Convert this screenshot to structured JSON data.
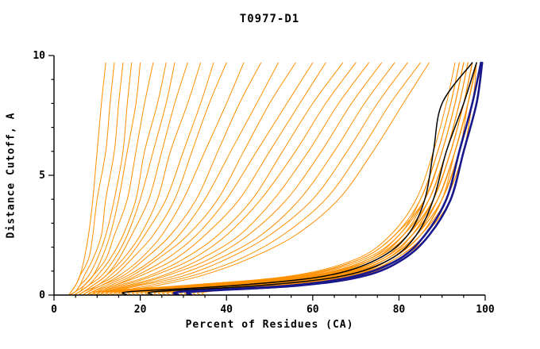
{
  "title": "T0977-D1",
  "axes": {
    "x": {
      "label": "Percent of Residues (CA)",
      "min": 0,
      "max": 100,
      "major_ticks": [
        0,
        20,
        40,
        60,
        80,
        100
      ],
      "minor_step": 5
    },
    "y": {
      "label": "Distance Cutoff, A",
      "min": 0,
      "max": 10,
      "major_ticks": [
        0,
        5,
        10
      ],
      "minor_step": 1
    }
  },
  "colors": {
    "orange_models": "#FF9000",
    "black_models": "#000000",
    "navy_models": "#18188C",
    "axis": "#000000",
    "background": "#FFFFFF"
  },
  "chart_data": {
    "type": "line",
    "title": "T0977-D1",
    "xlabel": "Percent of Residues (CA)",
    "ylabel": "Distance Cutoff, A",
    "xlim": [
      0,
      100
    ],
    "ylim": [
      0,
      10
    ],
    "grid": false,
    "legend": "none",
    "description": "Cumulative accuracy curves for CASP target T0977-D1: each curve is one predicted model; x = percent of CA residues within distance cutoff y (Angstroms). Orange = model pool, black = highlighted models, navy thick = best models.",
    "y_levels": [
      0.15,
      0.4,
      0.8,
      1.5,
      2.5,
      4,
      6,
      8,
      9.7
    ],
    "series_groups": [
      {
        "name": "predicted-models",
        "color_key": "orange_models",
        "stroke_width": 1,
        "curves_x_at_y_levels": [
          [
            4,
            5,
            6,
            7,
            8,
            9,
            10,
            11,
            12
          ],
          [
            4,
            5,
            6,
            8,
            9,
            10,
            12,
            13,
            14
          ],
          [
            5,
            6,
            7,
            9,
            11,
            12,
            14,
            15,
            16
          ],
          [
            5,
            6,
            8,
            10,
            12,
            14,
            16,
            17,
            18
          ],
          [
            5,
            7,
            9,
            11,
            13,
            15,
            17,
            19,
            20
          ],
          [
            6,
            7,
            9,
            12,
            14,
            17,
            19,
            21,
            23
          ],
          [
            6,
            8,
            10,
            13,
            16,
            19,
            21,
            24,
            26
          ],
          [
            6,
            8,
            11,
            14,
            17,
            20,
            23,
            26,
            28
          ],
          [
            7,
            9,
            12,
            15,
            18,
            22,
            25,
            28,
            31
          ],
          [
            7,
            9,
            12,
            16,
            20,
            24,
            27,
            31,
            34
          ],
          [
            7,
            10,
            13,
            17,
            21,
            26,
            30,
            34,
            37
          ],
          [
            8,
            10,
            14,
            18,
            23,
            28,
            32,
            36,
            40
          ],
          [
            8,
            11,
            15,
            20,
            25,
            30,
            35,
            40,
            44
          ],
          [
            8,
            11,
            16,
            21,
            27,
            33,
            38,
            43,
            48
          ],
          [
            9,
            12,
            17,
            23,
            29,
            35,
            41,
            47,
            52
          ],
          [
            9,
            13,
            18,
            24,
            31,
            38,
            44,
            50,
            56
          ],
          [
            10,
            14,
            19,
            26,
            33,
            40,
            47,
            54,
            60
          ],
          [
            10,
            14,
            20,
            28,
            35,
            43,
            50,
            57,
            63
          ],
          [
            11,
            15,
            22,
            30,
            38,
            46,
            53,
            60,
            67
          ],
          [
            11,
            16,
            23,
            32,
            40,
            48,
            56,
            63,
            70
          ],
          [
            12,
            17,
            25,
            34,
            43,
            51,
            59,
            66,
            73
          ],
          [
            12,
            18,
            26,
            36,
            45,
            54,
            62,
            69,
            76
          ],
          [
            13,
            19,
            28,
            38,
            48,
            57,
            65,
            72,
            79
          ],
          [
            14,
            20,
            30,
            40,
            50,
            60,
            68,
            75,
            82
          ],
          [
            15,
            22,
            32,
            43,
            53,
            63,
            71,
            78,
            85
          ],
          [
            16,
            24,
            34,
            45,
            56,
            66,
            74,
            81,
            87
          ],
          [
            10,
            30,
            55,
            70,
            78,
            84,
            88,
            91,
            93
          ],
          [
            12,
            32,
            57,
            71,
            79,
            85,
            89,
            92,
            94
          ],
          [
            14,
            34,
            58,
            72,
            80,
            85,
            89,
            92,
            94
          ],
          [
            16,
            36,
            60,
            73,
            80,
            86,
            90,
            93,
            95
          ],
          [
            18,
            38,
            61,
            74,
            81,
            86,
            90,
            93,
            95
          ],
          [
            20,
            40,
            62,
            74,
            81,
            87,
            91,
            94,
            96
          ],
          [
            22,
            42,
            63,
            75,
            82,
            87,
            91,
            94,
            96
          ],
          [
            24,
            44,
            64,
            76,
            82,
            88,
            92,
            95,
            97
          ],
          [
            26,
            45,
            65,
            76,
            83,
            88,
            92,
            95,
            97
          ],
          [
            28,
            46,
            66,
            77,
            83,
            88,
            92,
            95,
            97
          ],
          [
            30,
            48,
            67,
            77,
            84,
            89,
            93,
            96,
            98
          ],
          [
            32,
            50,
            68,
            78,
            84,
            89,
            93,
            96,
            98
          ],
          [
            34,
            52,
            69,
            78,
            85,
            90,
            93,
            96,
            98
          ],
          [
            15,
            35,
            60,
            74,
            82,
            88,
            92,
            95,
            97
          ],
          [
            17,
            37,
            62,
            75,
            82,
            88,
            92,
            95,
            97
          ],
          [
            19,
            39,
            63,
            76,
            83,
            89,
            93,
            96,
            98
          ],
          [
            21,
            41,
            64,
            76,
            83,
            89,
            93,
            96,
            98
          ],
          [
            23,
            43,
            65,
            77,
            84,
            90,
            94,
            96,
            98
          ],
          [
            25,
            44,
            66,
            77,
            84,
            90,
            94,
            97,
            98
          ],
          [
            27,
            46,
            67,
            78,
            85,
            90,
            94,
            97,
            99
          ],
          [
            29,
            47,
            68,
            78,
            85,
            91,
            94,
            97,
            99
          ],
          [
            31,
            49,
            69,
            79,
            86,
            91,
            95,
            97,
            99
          ],
          [
            33,
            51,
            70,
            79,
            86,
            91,
            95,
            97,
            99
          ],
          [
            35,
            53,
            70,
            80,
            86,
            92,
            95,
            98,
            99
          ],
          [
            13,
            33,
            59,
            73,
            81,
            87,
            91,
            94,
            96
          ],
          [
            11,
            31,
            56,
            71,
            79,
            86,
            90,
            93,
            95
          ],
          [
            36,
            54,
            71,
            80,
            87,
            92,
            95,
            98,
            99
          ],
          [
            28,
            47,
            66,
            77,
            84,
            89,
            93,
            96,
            98
          ]
        ]
      },
      {
        "name": "highlighted-models-black",
        "color_key": "black_models",
        "stroke_width": 1.5,
        "curves_x_at_y_levels": [
          [
            18,
            42,
            63,
            75,
            82,
            86,
            88,
            90,
            97
          ],
          [
            24,
            48,
            67,
            78,
            84,
            88,
            91,
            95,
            98
          ]
        ]
      },
      {
        "name": "best-models-navy",
        "color_key": "navy_models",
        "stroke_width": 2.6,
        "curves_x_at_y_levels": [
          [
            30,
            55,
            70,
            80,
            86,
            91,
            94,
            97,
            99
          ],
          [
            33,
            57,
            72,
            81,
            87,
            92,
            95,
            98,
            99.3
          ]
        ]
      }
    ]
  }
}
